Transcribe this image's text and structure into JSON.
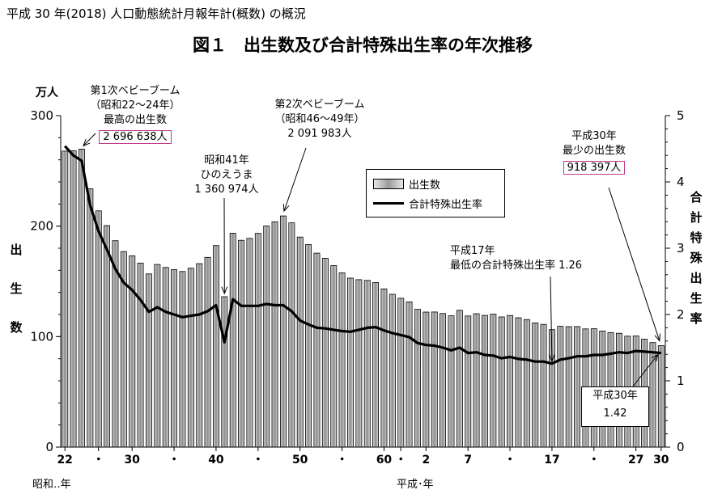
{
  "header": "平成 30 年(2018)  人口動態統計月報年計(概数)  の概況",
  "title": "図１　出生数及び合計特殊出生率の年次推移",
  "units": {
    "left": "万人"
  },
  "left_axis_label": "出\n生\n数",
  "right_axis_label": "合\n計\n特\n殊\n出\n生\n率",
  "x_era_labels": {
    "showa": "昭和‥年",
    "heisei": "平成･年"
  },
  "annotations": {
    "boom1": {
      "line1": "第1次ベビーブーム",
      "line2": "（昭和22～24年）",
      "line3": "最高の出生数",
      "value": "2 696 638人"
    },
    "boom2": {
      "line1": "第2次ベビーブーム",
      "line2": "（昭和46～49年）",
      "line3": "2 091 983人"
    },
    "hinoe": {
      "line1": "昭和41年",
      "line2": "ひのえうま",
      "line3": "1 360 974人"
    },
    "min_tfr": {
      "line1": "平成17年",
      "line2": "最低の合計特殊出生率 1.26"
    },
    "min_births": {
      "line1": "平成30年",
      "line2": "最少の出生数",
      "value": "918 397人"
    },
    "tfr_h30": {
      "line1": "平成30年",
      "line2": "1.42"
    }
  },
  "legend": {
    "births": "出生数",
    "tfr": "合計特殊出生率"
  },
  "chart_data": {
    "type": "bar",
    "title": "図１　出生数及び合計特殊出生率の年次推移",
    "x_tick_labels": [
      "22",
      "・",
      "30",
      "・",
      "40",
      "・",
      "50",
      "・",
      "60",
      "・",
      "2",
      "7",
      "・",
      "17",
      "・",
      "27",
      "30"
    ],
    "x_tick_years": [
      1947,
      1951,
      1955,
      1960,
      1965,
      1970,
      1975,
      1980,
      1985,
      1987,
      1990,
      1995,
      2000,
      2005,
      2010,
      2015,
      2018
    ],
    "years": [
      1947,
      1948,
      1949,
      1950,
      1951,
      1952,
      1953,
      1954,
      1955,
      1956,
      1957,
      1958,
      1959,
      1960,
      1961,
      1962,
      1963,
      1964,
      1965,
      1966,
      1967,
      1968,
      1969,
      1970,
      1971,
      1972,
      1973,
      1974,
      1975,
      1976,
      1977,
      1978,
      1979,
      1980,
      1981,
      1982,
      1983,
      1984,
      1985,
      1986,
      1987,
      1988,
      1989,
      1990,
      1991,
      1992,
      1993,
      1994,
      1995,
      1996,
      1997,
      1998,
      1999,
      2000,
      2001,
      2002,
      2003,
      2004,
      2005,
      2006,
      2007,
      2008,
      2009,
      2010,
      2011,
      2012,
      2013,
      2014,
      2015,
      2016,
      2017,
      2018
    ],
    "series": [
      {
        "name": "出生数",
        "axis": "left",
        "unit": "万人",
        "values": [
          267.9,
          268.2,
          269.7,
          233.8,
          213.8,
          200.5,
          186.8,
          177.0,
          173.1,
          166.5,
          156.7,
          165.3,
          162.6,
          160.6,
          158.9,
          161.9,
          166.0,
          171.7,
          182.4,
          136.1,
          193.6,
          187.2,
          188.9,
          193.4,
          200.1,
          203.9,
          209.2,
          203.0,
          190.1,
          183.3,
          175.5,
          170.9,
          164.3,
          157.7,
          152.9,
          151.5,
          150.9,
          149.0,
          143.2,
          138.3,
          134.7,
          131.4,
          124.7,
          122.2,
          122.3,
          120.9,
          118.8,
          123.8,
          118.7,
          120.7,
          119.2,
          120.3,
          117.8,
          119.1,
          117.1,
          115.4,
          112.4,
          111.1,
          106.3,
          109.3,
          109.0,
          109.1,
          107.0,
          107.1,
          105.1,
          103.7,
          103.0,
          100.4,
          100.6,
          97.7,
          94.6,
          91.8
        ]
      },
      {
        "name": "合計特殊出生率",
        "axis": "right",
        "values": [
          4.54,
          4.4,
          4.32,
          3.65,
          3.26,
          2.98,
          2.69,
          2.48,
          2.37,
          2.22,
          2.04,
          2.11,
          2.04,
          2.0,
          1.96,
          1.98,
          2.0,
          2.05,
          2.14,
          1.58,
          2.23,
          2.13,
          2.13,
          2.13,
          2.16,
          2.14,
          2.14,
          2.05,
          1.91,
          1.85,
          1.8,
          1.79,
          1.77,
          1.75,
          1.74,
          1.77,
          1.8,
          1.81,
          1.76,
          1.72,
          1.69,
          1.66,
          1.57,
          1.54,
          1.53,
          1.5,
          1.46,
          1.5,
          1.42,
          1.43,
          1.39,
          1.38,
          1.34,
          1.36,
          1.33,
          1.32,
          1.29,
          1.29,
          1.26,
          1.32,
          1.34,
          1.37,
          1.37,
          1.39,
          1.39,
          1.41,
          1.43,
          1.42,
          1.45,
          1.44,
          1.43,
          1.42
        ]
      }
    ],
    "y_left": {
      "label": "出生数",
      "unit": "万人",
      "min": 0,
      "max": 300,
      "ticks": [
        0,
        100,
        200,
        300
      ]
    },
    "y_right": {
      "label": "合計特殊出生率",
      "min": 0,
      "max": 5,
      "ticks": [
        0,
        1,
        2,
        3,
        4,
        5
      ]
    },
    "grid": false,
    "legend_position": "center-right"
  }
}
